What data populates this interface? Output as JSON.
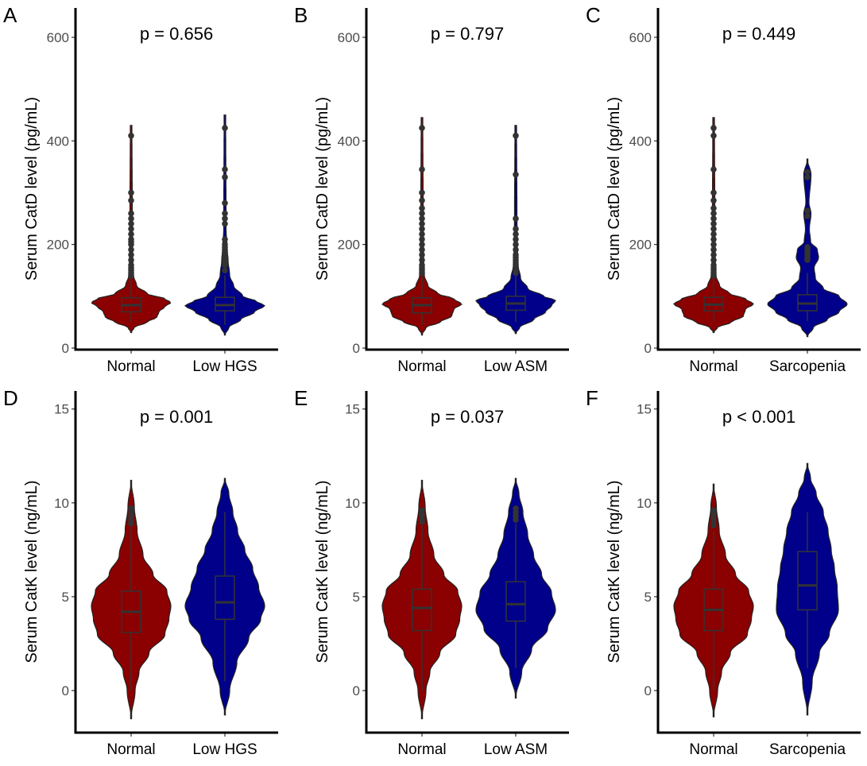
{
  "colors": {
    "normal": "#8B0000",
    "case": "#00008B",
    "box": "#333333",
    "outlier": "#333333"
  },
  "chart_data": [
    {
      "panel": "A",
      "type": "violin",
      "ylabel": "Serum CatD level (pg/mL)",
      "p_label": "p = 0.656",
      "ylim": [
        -3,
        649
      ],
      "yticks": [
        0,
        200,
        400,
        600
      ],
      "categories": [
        "Normal",
        "Low HGS"
      ],
      "groups": [
        {
          "name": "Normal",
          "range": [
            30,
            430
          ],
          "box": {
            "whisker_low": 50,
            "q1": 70,
            "median": 83,
            "q3": 97,
            "whisker_high": 135
          },
          "density": [
            [
              30,
              0
            ],
            [
              40,
              0.08
            ],
            [
              50,
              0.4
            ],
            [
              60,
              0.65
            ],
            [
              70,
              0.7
            ],
            [
              80,
              0.85
            ],
            [
              88,
              1.0
            ],
            [
              95,
              0.85
            ],
            [
              105,
              0.4
            ],
            [
              120,
              0.14
            ],
            [
              140,
              0.06
            ],
            [
              180,
              0.04
            ],
            [
              260,
              0.03
            ],
            [
              430,
              0.02
            ]
          ],
          "outliers": [
            140,
            145,
            150,
            155,
            160,
            170,
            180,
            190,
            200,
            205,
            210,
            220,
            230,
            240,
            250,
            260,
            285,
            300,
            410
          ]
        },
        {
          "name": "Low HGS",
          "range": [
            25,
            450
          ],
          "box": {
            "whisker_low": 45,
            "q1": 72,
            "median": 83,
            "q3": 98,
            "whisker_high": 140
          },
          "density": [
            [
              25,
              0
            ],
            [
              40,
              0.1
            ],
            [
              55,
              0.4
            ],
            [
              70,
              0.75
            ],
            [
              82,
              1.0
            ],
            [
              90,
              0.8
            ],
            [
              100,
              0.45
            ],
            [
              120,
              0.22
            ],
            [
              140,
              0.12
            ],
            [
              170,
              0.08
            ],
            [
              190,
              0.06
            ],
            [
              230,
              0.03
            ],
            [
              450,
              0.02
            ]
          ],
          "outliers": [
            150,
            160,
            165,
            170,
            175,
            180,
            185,
            190,
            195,
            200,
            210,
            240,
            250,
            260,
            280,
            330,
            345,
            425
          ]
        }
      ]
    },
    {
      "panel": "B",
      "type": "violin",
      "ylabel": "Serum CatD level (pg/mL)",
      "p_label": "p = 0.797",
      "ylim": [
        -3,
        649
      ],
      "yticks": [
        0,
        200,
        400,
        600
      ],
      "categories": [
        "Normal",
        "Low ASM"
      ],
      "groups": [
        {
          "name": "Normal",
          "range": [
            25,
            445
          ],
          "box": {
            "whisker_low": 45,
            "q1": 68,
            "median": 83,
            "q3": 97,
            "whisker_high": 140
          },
          "density": [
            [
              25,
              0
            ],
            [
              40,
              0.1
            ],
            [
              50,
              0.45
            ],
            [
              62,
              0.75
            ],
            [
              75,
              0.8
            ],
            [
              85,
              1.0
            ],
            [
              95,
              0.8
            ],
            [
              105,
              0.4
            ],
            [
              120,
              0.15
            ],
            [
              140,
              0.06
            ],
            [
              180,
              0.04
            ],
            [
              260,
              0.03
            ],
            [
              445,
              0.02
            ]
          ],
          "outliers": [
            145,
            150,
            155,
            160,
            170,
            180,
            190,
            200,
            210,
            220,
            230,
            240,
            250,
            260,
            270,
            285,
            300,
            345,
            425
          ]
        },
        {
          "name": "Low ASM",
          "range": [
            28,
            430
          ],
          "box": {
            "whisker_low": 50,
            "q1": 73,
            "median": 86,
            "q3": 100,
            "whisker_high": 140
          },
          "density": [
            [
              28,
              0
            ],
            [
              40,
              0.1
            ],
            [
              55,
              0.45
            ],
            [
              70,
              0.75
            ],
            [
              82,
              0.9
            ],
            [
              92,
              1.0
            ],
            [
              100,
              0.7
            ],
            [
              115,
              0.3
            ],
            [
              135,
              0.12
            ],
            [
              160,
              0.06
            ],
            [
              200,
              0.04
            ],
            [
              260,
              0.03
            ],
            [
              430,
              0.02
            ]
          ],
          "outliers": [
            145,
            150,
            160,
            170,
            175,
            180,
            190,
            200,
            210,
            220,
            230,
            250,
            335,
            410
          ]
        }
      ]
    },
    {
      "panel": "C",
      "type": "violin",
      "ylabel": "Serum CatD level (pg/mL)",
      "p_label": "p = 0.449",
      "ylim": [
        -3,
        649
      ],
      "yticks": [
        0,
        200,
        400,
        600
      ],
      "categories": [
        "Normal",
        "Sarcopenia"
      ],
      "groups": [
        {
          "name": "Normal",
          "range": [
            30,
            445
          ],
          "box": {
            "whisker_low": 50,
            "q1": 72,
            "median": 84,
            "q3": 98,
            "whisker_high": 135
          },
          "density": [
            [
              30,
              0
            ],
            [
              40,
              0.1
            ],
            [
              50,
              0.45
            ],
            [
              62,
              0.75
            ],
            [
              75,
              0.8
            ],
            [
              85,
              1.0
            ],
            [
              95,
              0.8
            ],
            [
              105,
              0.4
            ],
            [
              120,
              0.15
            ],
            [
              140,
              0.06
            ],
            [
              180,
              0.04
            ],
            [
              260,
              0.03
            ],
            [
              445,
              0.02
            ]
          ],
          "outliers": [
            140,
            145,
            150,
            155,
            160,
            170,
            180,
            190,
            200,
            210,
            220,
            230,
            240,
            250,
            260,
            270,
            285,
            300,
            345,
            410,
            425
          ]
        },
        {
          "name": "Sarcopenia",
          "range": [
            22,
            365
          ],
          "box": {
            "whisker_low": 52,
            "q1": 72,
            "median": 86,
            "q3": 103,
            "whisker_high": 145
          },
          "density": [
            [
              22,
              0
            ],
            [
              40,
              0.15
            ],
            [
              55,
              0.5
            ],
            [
              70,
              0.8
            ],
            [
              85,
              1.0
            ],
            [
              100,
              0.8
            ],
            [
              115,
              0.4
            ],
            [
              135,
              0.2
            ],
            [
              155,
              0.17
            ],
            [
              175,
              0.28
            ],
            [
              190,
              0.25
            ],
            [
              205,
              0.08
            ],
            [
              230,
              0.05
            ],
            [
              260,
              0.09
            ],
            [
              280,
              0.04
            ],
            [
              335,
              0.09
            ],
            [
              365,
              0
            ]
          ],
          "outliers": [
            170,
            175,
            180,
            185,
            190,
            195,
            255,
            265,
            330,
            340
          ]
        }
      ]
    },
    {
      "panel": "D",
      "type": "violin",
      "ylabel": "Serum CatK level (ng/mL)",
      "p_label": "p = 0.001",
      "ylim": [
        -2.24,
        15.75
      ],
      "yticks": [
        0,
        5,
        10,
        15
      ],
      "categories": [
        "Normal",
        "Low HGS"
      ],
      "groups": [
        {
          "name": "Normal",
          "range": [
            -1.5,
            11.2
          ],
          "box": {
            "whisker_low": 0,
            "q1": 3.1,
            "median": 4.2,
            "q3": 5.3,
            "whisker_high": 8.7
          },
          "density": [
            [
              -1.5,
              0
            ],
            [
              0,
              0.1
            ],
            [
              1,
              0.2
            ],
            [
              2,
              0.45
            ],
            [
              3,
              0.85
            ],
            [
              3.8,
              0.95
            ],
            [
              4.5,
              1.0
            ],
            [
              5.3,
              0.9
            ],
            [
              6.2,
              0.55
            ],
            [
              7.2,
              0.3
            ],
            [
              8.5,
              0.15
            ],
            [
              9.8,
              0.08
            ],
            [
              11.2,
              0
            ]
          ],
          "outliers": [
            8.9,
            9.1,
            9.3,
            9.5,
            9.7
          ]
        },
        {
          "name": "Low HGS",
          "range": [
            -1.3,
            11.3
          ],
          "box": {
            "whisker_low": 0.5,
            "q1": 3.8,
            "median": 4.7,
            "q3": 6.1,
            "whisker_high": 9.5
          },
          "density": [
            [
              -1.3,
              0
            ],
            [
              0,
              0.12
            ],
            [
              1.5,
              0.3
            ],
            [
              2.8,
              0.6
            ],
            [
              3.8,
              0.9
            ],
            [
              4.5,
              1.0
            ],
            [
              5.5,
              0.85
            ],
            [
              6.5,
              0.7
            ],
            [
              7.5,
              0.5
            ],
            [
              8.5,
              0.32
            ],
            [
              9.5,
              0.2
            ],
            [
              10.5,
              0.1
            ],
            [
              11.3,
              0
            ]
          ],
          "outliers": []
        }
      ]
    },
    {
      "panel": "E",
      "type": "violin",
      "ylabel": "Serum CatK level (ng/mL)",
      "p_label": "p = 0.037",
      "ylim": [
        -2.24,
        15.75
      ],
      "yticks": [
        0,
        5,
        10,
        15
      ],
      "categories": [
        "Normal",
        "Low ASM"
      ],
      "groups": [
        {
          "name": "Normal",
          "range": [
            -1.5,
            11.2
          ],
          "box": {
            "whisker_low": 0,
            "q1": 3.2,
            "median": 4.4,
            "q3": 5.4,
            "whisker_high": 8.8
          },
          "density": [
            [
              -1.5,
              0
            ],
            [
              0,
              0.1
            ],
            [
              1,
              0.2
            ],
            [
              2,
              0.45
            ],
            [
              3,
              0.85
            ],
            [
              3.8,
              0.95
            ],
            [
              4.5,
              1.0
            ],
            [
              5.3,
              0.9
            ],
            [
              6.2,
              0.55
            ],
            [
              7.2,
              0.3
            ],
            [
              8.5,
              0.15
            ],
            [
              9.8,
              0.08
            ],
            [
              11.2,
              0
            ]
          ],
          "outliers": [
            9.0,
            9.2,
            9.4,
            9.6
          ]
        },
        {
          "name": "Low ASM",
          "range": [
            -0.4,
            11.3
          ],
          "box": {
            "whisker_low": 1.2,
            "q1": 3.7,
            "median": 4.6,
            "q3": 5.8,
            "whisker_high": 8.9
          },
          "density": [
            [
              -0.4,
              0
            ],
            [
              1,
              0.15
            ],
            [
              2.2,
              0.4
            ],
            [
              3.3,
              0.8
            ],
            [
              4.3,
              1.0
            ],
            [
              5.2,
              0.9
            ],
            [
              6.2,
              0.65
            ],
            [
              7.2,
              0.45
            ],
            [
              8.3,
              0.3
            ],
            [
              9.5,
              0.18
            ],
            [
              10.5,
              0.08
            ],
            [
              11.3,
              0
            ]
          ],
          "outliers": [
            9.1,
            9.3,
            9.5,
            9.7
          ]
        }
      ]
    },
    {
      "panel": "F",
      "type": "violin",
      "ylabel": "Serum CatK level (ng/mL)",
      "p_label": "p < 0.001",
      "ylim": [
        -2.24,
        15.75
      ],
      "yticks": [
        0,
        5,
        10,
        15
      ],
      "categories": [
        "Normal",
        "Sarcopenia"
      ],
      "groups": [
        {
          "name": "Normal",
          "range": [
            -1.4,
            11.0
          ],
          "box": {
            "whisker_low": 0,
            "q1": 3.2,
            "median": 4.3,
            "q3": 5.4,
            "whisker_high": 8.5
          },
          "density": [
            [
              -1.4,
              0
            ],
            [
              0,
              0.1
            ],
            [
              1,
              0.2
            ],
            [
              2,
              0.42
            ],
            [
              3,
              0.85
            ],
            [
              3.8,
              0.95
            ],
            [
              4.5,
              1.0
            ],
            [
              5.3,
              0.88
            ],
            [
              6.2,
              0.55
            ],
            [
              7.2,
              0.3
            ],
            [
              8.5,
              0.14
            ],
            [
              9.8,
              0.07
            ],
            [
              11.0,
              0
            ]
          ],
          "outliers": [
            8.8,
            9.0,
            9.2,
            9.4,
            9.6
          ]
        },
        {
          "name": "Sarcopenia",
          "range": [
            -1.3,
            12.1
          ],
          "box": {
            "whisker_low": 1.2,
            "q1": 4.3,
            "median": 5.6,
            "q3": 7.4,
            "whisker_high": 9.5
          },
          "density": [
            [
              -1.3,
              0
            ],
            [
              0.5,
              0.12
            ],
            [
              2,
              0.3
            ],
            [
              3,
              0.55
            ],
            [
              4.3,
              0.78
            ],
            [
              5.5,
              0.75
            ],
            [
              6.5,
              0.68
            ],
            [
              7.5,
              0.6
            ],
            [
              8.5,
              0.52
            ],
            [
              9.5,
              0.4
            ],
            [
              10.5,
              0.22
            ],
            [
              11.3,
              0.08
            ],
            [
              12.1,
              0
            ]
          ],
          "outliers": []
        }
      ]
    }
  ]
}
